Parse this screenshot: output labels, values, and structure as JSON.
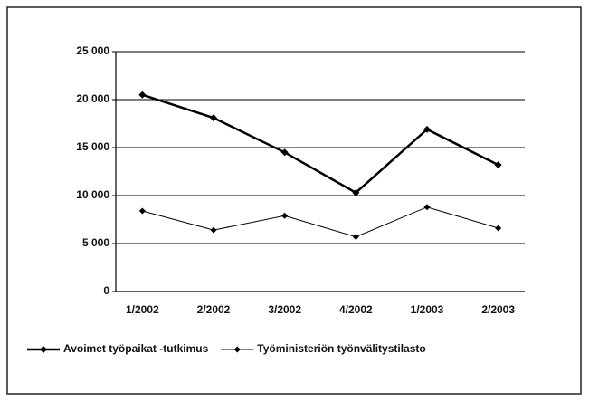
{
  "chart_data": {
    "type": "line",
    "categories": [
      "1/2002",
      "2/2002",
      "3/2002",
      "4/2002",
      "1/2003",
      "2/2003"
    ],
    "series": [
      {
        "name": "Avoimet työpaikat -tutkimus",
        "color": "#000000",
        "values": [
          20500,
          18100,
          14500,
          10300,
          16900,
          13200
        ]
      },
      {
        "name": "Työministeriön työnvälitystilasto",
        "color": "#000000",
        "values": [
          8400,
          6400,
          7900,
          5700,
          8800,
          6600
        ]
      }
    ],
    "ylim": [
      0,
      25000
    ],
    "yticks": [
      0,
      {
        "value": 5000,
        "label": "5 000"
      },
      {
        "value": 10000,
        "label": "10 000"
      },
      {
        "value": 15000,
        "label": "15 000"
      },
      {
        "value": 20000,
        "label": "20 000"
      },
      {
        "value": 25000,
        "label": "25 000"
      }
    ],
    "grid": true,
    "legend": "bottom"
  }
}
